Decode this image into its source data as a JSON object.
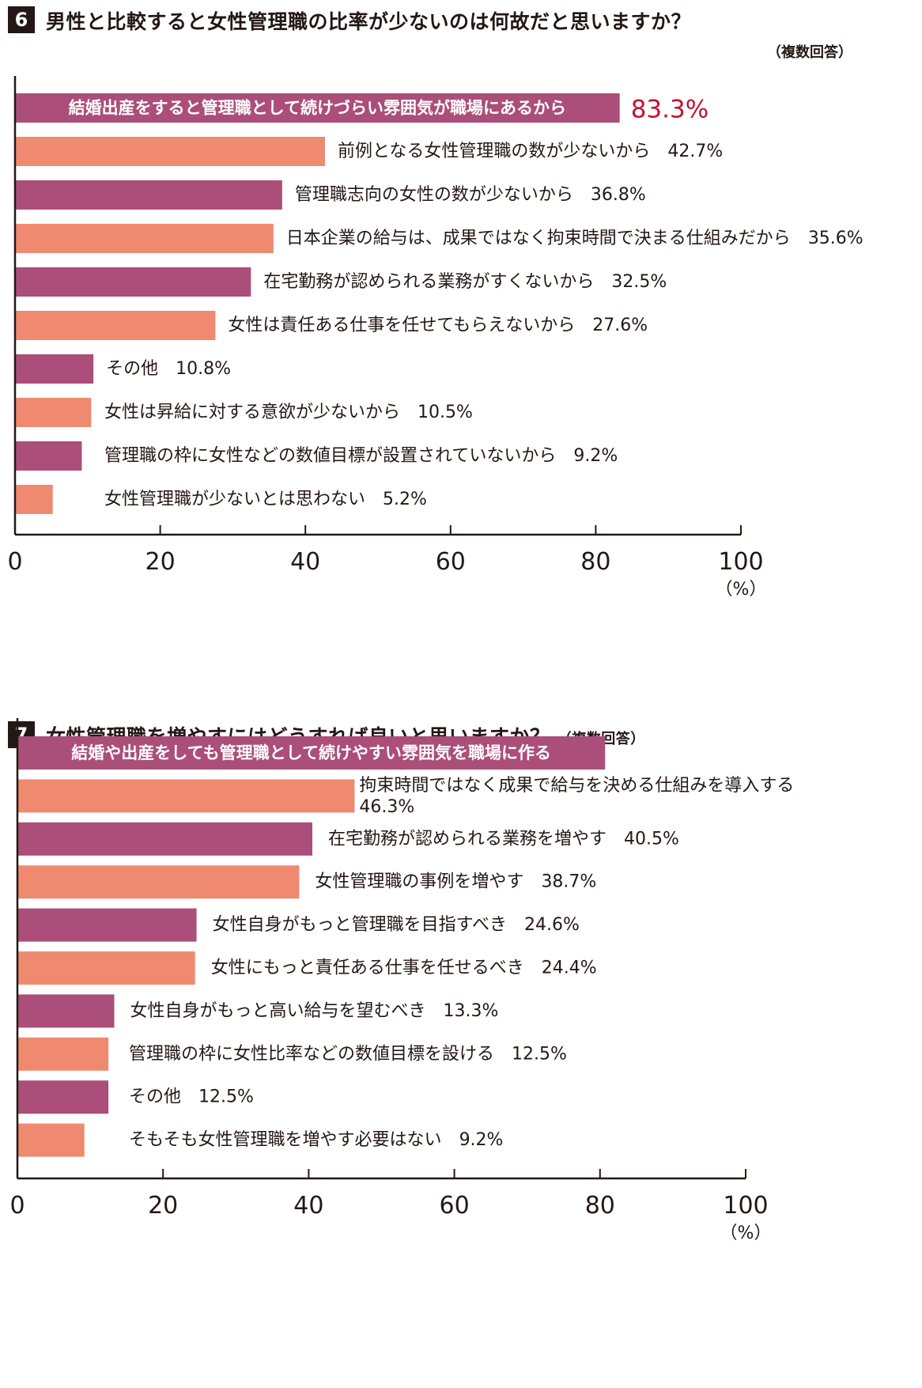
{
  "colors": {
    "purple": "#ab4e79",
    "salmon": "#ef8a71",
    "axis": "#231815",
    "highlight": "#c8102e"
  },
  "q6": {
    "number": "6",
    "title": "男性と比較すると女性管理職の比率が少ないのは何故だと思いますか？",
    "note": "（複数回答）"
  },
  "q7": {
    "number": "7",
    "title": "女性管理職を増やすにはどうすれば良いと思いますか？",
    "note": "（複数回答）"
  },
  "chart_data": [
    {
      "type": "bar",
      "orientation": "horizontal",
      "unit": "（%）",
      "xlim": [
        0,
        100
      ],
      "ticks": [
        "0",
        "20",
        "40",
        "60",
        "80",
        "100"
      ],
      "bars": [
        {
          "label": "結婚出産をすると管理職として続けづらい雰囲気が職場にあるから",
          "value": 83.3,
          "value_text": "83.3%",
          "color": "purple"
        },
        {
          "label": "前例となる女性管理職の数が少ないから",
          "value": 42.7,
          "value_text": "42.7%",
          "color": "salmon"
        },
        {
          "label": "管理職志向の女性の数が少ないから",
          "value": 36.8,
          "value_text": "36.8%",
          "color": "purple"
        },
        {
          "label": "日本企業の給与は、成果ではなく拘束時間で決まる仕組みだから",
          "value": 35.6,
          "value_text": "35.6%",
          "color": "salmon"
        },
        {
          "label": "在宅勤務が認められる業務がすくないから",
          "value": 32.5,
          "value_text": "32.5%",
          "color": "purple"
        },
        {
          "label": "女性は責任ある仕事を任せてもらえないから",
          "value": 27.6,
          "value_text": "27.6%",
          "color": "salmon"
        },
        {
          "label": "その他",
          "value": 10.8,
          "value_text": "10.8%",
          "color": "purple"
        },
        {
          "label": "女性は昇給に対する意欲が少ないから",
          "value": 10.5,
          "value_text": "10.5%",
          "color": "salmon"
        },
        {
          "label": "管理職の枠に女性などの数値目標が設置されていないから",
          "value": 9.2,
          "value_text": "9.2%",
          "color": "purple"
        },
        {
          "label": "女性管理職が少ないとは思わない",
          "value": 5.2,
          "value_text": "5.2%",
          "color": "salmon"
        }
      ]
    },
    {
      "type": "bar",
      "orientation": "horizontal",
      "unit": "（%）",
      "xlim": [
        0,
        100
      ],
      "ticks": [
        "0",
        "20",
        "40",
        "60",
        "80",
        "100"
      ],
      "bars": [
        {
          "label": "結婚や出産をしても管理職として続けやすい雰囲気を職場に作る",
          "value": 80.7,
          "value_text": "",
          "color": "purple"
        },
        {
          "label": "拘束時間ではなく成果で給与を決める仕組みを導入する",
          "value": 46.3,
          "value_text": "46.3%",
          "color": "salmon"
        },
        {
          "label": "在宅勤務が認められる業務を増やす",
          "value": 40.5,
          "value_text": "40.5%",
          "color": "purple"
        },
        {
          "label": "女性管理職の事例を増やす",
          "value": 38.7,
          "value_text": "38.7%",
          "color": "salmon"
        },
        {
          "label": "女性自身がもっと管理職を目指すべき",
          "value": 24.6,
          "value_text": "24.6%",
          "color": "purple"
        },
        {
          "label": "女性にもっと責任ある仕事を任せるべき",
          "value": 24.4,
          "value_text": "24.4%",
          "color": "salmon"
        },
        {
          "label": "女性自身がもっと高い給与を望むべき",
          "value": 13.3,
          "value_text": "13.3%",
          "color": "purple"
        },
        {
          "label": "管理職の枠に女性比率などの数値目標を設ける",
          "value": 12.5,
          "value_text": "12.5%",
          "color": "salmon"
        },
        {
          "label": "その他",
          "value": 12.5,
          "value_text": "12.5%",
          "color": "purple"
        },
        {
          "label": "そもそも女性管理職を増やす必要はない",
          "value": 9.2,
          "value_text": "9.2%",
          "color": "salmon"
        }
      ]
    }
  ]
}
